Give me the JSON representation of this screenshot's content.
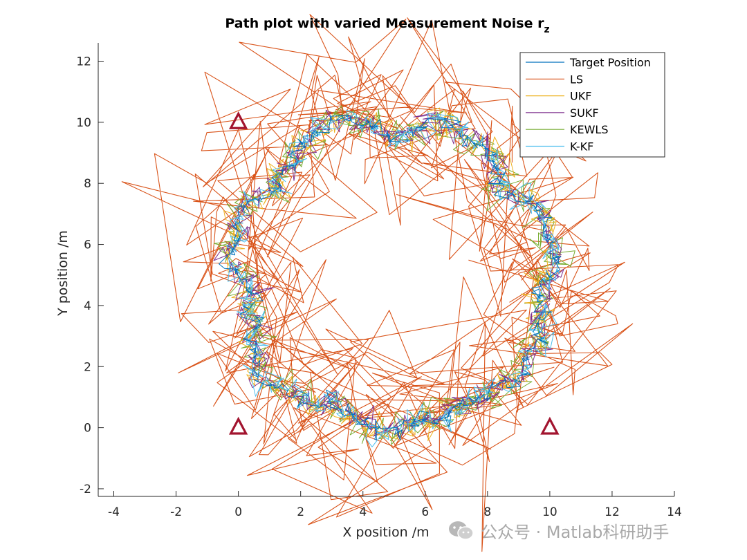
{
  "chart_data": {
    "type": "line",
    "title": "Path plot with varied Measurement Noise r",
    "title_subscript": "z",
    "xlabel": "X position /m",
    "ylabel": "Y position /m",
    "xlim": [
      -4.5,
      14
    ],
    "ylim": [
      -2.25,
      12.6
    ],
    "xticks": [
      -4,
      -2,
      0,
      2,
      4,
      6,
      8,
      10,
      12,
      14
    ],
    "yticks": [
      -2,
      0,
      2,
      4,
      6,
      8,
      10,
      12
    ],
    "grid": false,
    "legend_position": "top-right",
    "circle_center": [
      5,
      5
    ],
    "circle_radius_approx": 5,
    "series": [
      {
        "name": "Target Position",
        "color": "#0072BD",
        "noise": 0.12
      },
      {
        "name": "LS",
        "color": "#D95319",
        "noise": 1.6
      },
      {
        "name": "UKF",
        "color": "#EDB120",
        "noise": 0.22
      },
      {
        "name": "SUKF",
        "color": "#7E2F8E",
        "noise": 0.2
      },
      {
        "name": "KEWLS",
        "color": "#77AC30",
        "noise": 0.26
      },
      {
        "name": "K-KF",
        "color": "#4DBEEE",
        "noise": 0.2
      }
    ],
    "anchors": [
      {
        "x": 0,
        "y": 10
      },
      {
        "x": 0,
        "y": 0
      },
      {
        "x": 10,
        "y": 0
      }
    ],
    "anchor_color": "#A2142F"
  },
  "watermark": {
    "text": "公众号 · Matlab科研助手",
    "icon": "wechat-icon"
  }
}
